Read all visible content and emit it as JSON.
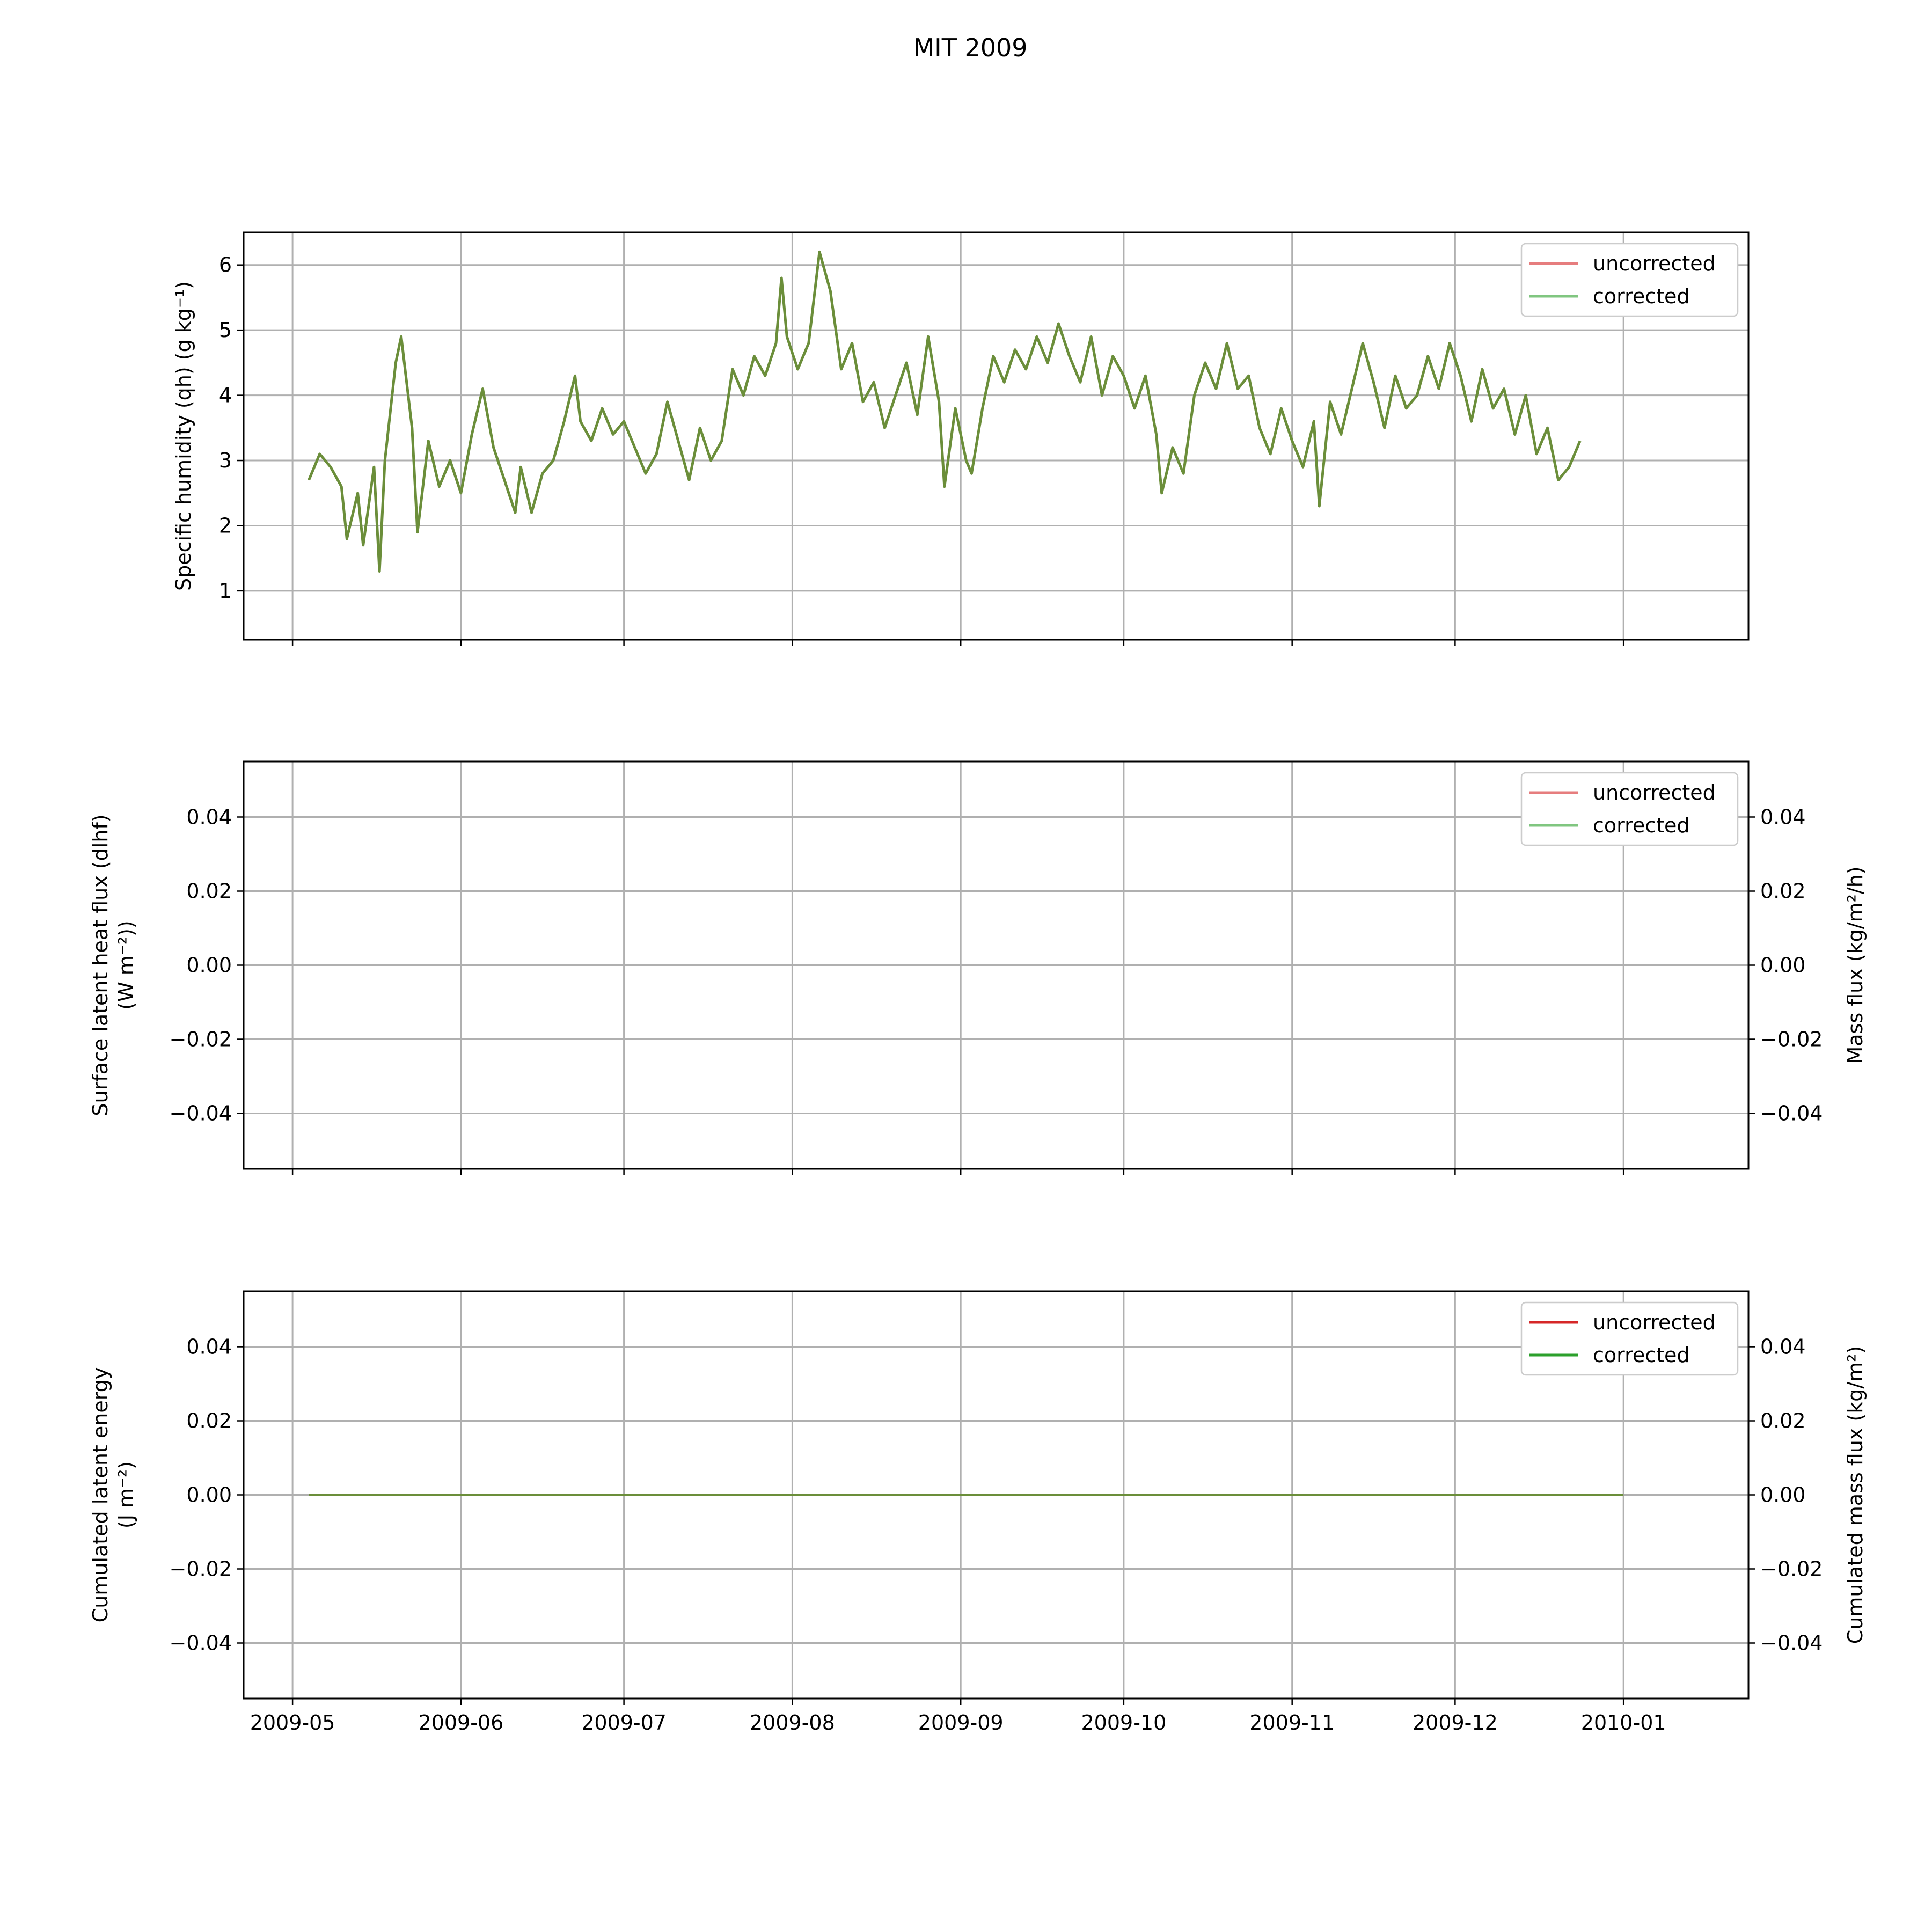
{
  "figure": {
    "title": "MIT 2009",
    "date_tick_labels": [
      "2009-05",
      "2009-06",
      "2009-07",
      "2009-08",
      "2009-09",
      "2009-10",
      "2009-11",
      "2009-12",
      "2010-01"
    ]
  },
  "colors": {
    "uncorrected": "#d62728",
    "corrected": "#2ca02c",
    "overlap": "#6b8e3a",
    "grid": "#b0b0b0"
  },
  "chart_data": [
    {
      "type": "line",
      "ylabel": "Specific humidity (qh) (g kg⁻¹)",
      "ylim": [
        0.25,
        6.5
      ],
      "yticks": [
        1,
        2,
        3,
        4,
        5,
        6
      ],
      "xlim": [
        "2009-04-22",
        "2010-01-24"
      ],
      "grid": true,
      "legend": "top-right",
      "legend_alpha": 0.6,
      "series_names": [
        "uncorrected",
        "corrected"
      ],
      "note_values": "uncorrected and corrected series are visually identical",
      "series_points": [
        [
          "2009-05-04",
          2.7
        ],
        [
          "2009-05-06",
          3.1
        ],
        [
          "2009-05-08",
          2.9
        ],
        [
          "2009-05-10",
          2.6
        ],
        [
          "2009-05-11",
          1.8
        ],
        [
          "2009-05-13",
          2.5
        ],
        [
          "2009-05-14",
          1.7
        ],
        [
          "2009-05-16",
          2.9
        ],
        [
          "2009-05-17",
          1.3
        ],
        [
          "2009-05-18",
          3.0
        ],
        [
          "2009-05-20",
          4.5
        ],
        [
          "2009-05-21",
          4.9
        ],
        [
          "2009-05-23",
          3.5
        ],
        [
          "2009-05-24",
          1.9
        ],
        [
          "2009-05-26",
          3.3
        ],
        [
          "2009-05-28",
          2.6
        ],
        [
          "2009-05-30",
          3.0
        ],
        [
          "2009-06-01",
          2.5
        ],
        [
          "2009-06-03",
          3.4
        ],
        [
          "2009-06-05",
          4.1
        ],
        [
          "2009-06-07",
          3.2
        ],
        [
          "2009-06-09",
          2.7
        ],
        [
          "2009-06-11",
          2.2
        ],
        [
          "2009-06-12",
          2.9
        ],
        [
          "2009-06-14",
          2.2
        ],
        [
          "2009-06-16",
          2.8
        ],
        [
          "2009-06-18",
          3.0
        ],
        [
          "2009-06-20",
          3.6
        ],
        [
          "2009-06-22",
          4.3
        ],
        [
          "2009-06-23",
          3.6
        ],
        [
          "2009-06-25",
          3.3
        ],
        [
          "2009-06-27",
          3.8
        ],
        [
          "2009-06-29",
          3.4
        ],
        [
          "2009-07-01",
          3.6
        ],
        [
          "2009-07-03",
          3.2
        ],
        [
          "2009-07-05",
          2.8
        ],
        [
          "2009-07-07",
          3.1
        ],
        [
          "2009-07-09",
          3.9
        ],
        [
          "2009-07-11",
          3.3
        ],
        [
          "2009-07-13",
          2.7
        ],
        [
          "2009-07-15",
          3.5
        ],
        [
          "2009-07-17",
          3.0
        ],
        [
          "2009-07-19",
          3.3
        ],
        [
          "2009-07-21",
          4.4
        ],
        [
          "2009-07-23",
          4.0
        ],
        [
          "2009-07-25",
          4.6
        ],
        [
          "2009-07-27",
          4.3
        ],
        [
          "2009-07-29",
          4.8
        ],
        [
          "2009-07-30",
          5.8
        ],
        [
          "2009-07-31",
          4.9
        ],
        [
          "2009-08-02",
          4.4
        ],
        [
          "2009-08-04",
          4.8
        ],
        [
          "2009-08-06",
          6.2
        ],
        [
          "2009-08-08",
          5.6
        ],
        [
          "2009-08-10",
          4.4
        ],
        [
          "2009-08-12",
          4.8
        ],
        [
          "2009-08-14",
          3.9
        ],
        [
          "2009-08-16",
          4.2
        ],
        [
          "2009-08-18",
          3.5
        ],
        [
          "2009-08-20",
          4.0
        ],
        [
          "2009-08-22",
          4.5
        ],
        [
          "2009-08-24",
          3.7
        ],
        [
          "2009-08-26",
          4.9
        ],
        [
          "2009-08-28",
          3.9
        ],
        [
          "2009-08-29",
          2.6
        ],
        [
          "2009-08-31",
          3.8
        ],
        [
          "2009-09-02",
          3.0
        ],
        [
          "2009-09-03",
          2.8
        ],
        [
          "2009-09-05",
          3.8
        ],
        [
          "2009-09-07",
          4.6
        ],
        [
          "2009-09-09",
          4.2
        ],
        [
          "2009-09-11",
          4.7
        ],
        [
          "2009-09-13",
          4.4
        ],
        [
          "2009-09-15",
          4.9
        ],
        [
          "2009-09-17",
          4.5
        ],
        [
          "2009-09-19",
          5.1
        ],
        [
          "2009-09-21",
          4.6
        ],
        [
          "2009-09-23",
          4.2
        ],
        [
          "2009-09-25",
          4.9
        ],
        [
          "2009-09-27",
          4.0
        ],
        [
          "2009-09-29",
          4.6
        ],
        [
          "2009-10-01",
          4.3
        ],
        [
          "2009-10-03",
          3.8
        ],
        [
          "2009-10-05",
          4.3
        ],
        [
          "2009-10-07",
          3.4
        ],
        [
          "2009-10-08",
          2.5
        ],
        [
          "2009-10-10",
          3.2
        ],
        [
          "2009-10-12",
          2.8
        ],
        [
          "2009-10-14",
          4.0
        ],
        [
          "2009-10-16",
          4.5
        ],
        [
          "2009-10-18",
          4.1
        ],
        [
          "2009-10-20",
          4.8
        ],
        [
          "2009-10-22",
          4.1
        ],
        [
          "2009-10-24",
          4.3
        ],
        [
          "2009-10-26",
          3.5
        ],
        [
          "2009-10-28",
          3.1
        ],
        [
          "2009-10-30",
          3.8
        ],
        [
          "2009-11-01",
          3.3
        ],
        [
          "2009-11-03",
          2.9
        ],
        [
          "2009-11-05",
          3.6
        ],
        [
          "2009-11-06",
          2.3
        ],
        [
          "2009-11-08",
          3.9
        ],
        [
          "2009-11-10",
          3.4
        ],
        [
          "2009-11-12",
          4.1
        ],
        [
          "2009-11-14",
          4.8
        ],
        [
          "2009-11-16",
          4.2
        ],
        [
          "2009-11-18",
          3.5
        ],
        [
          "2009-11-20",
          4.3
        ],
        [
          "2009-11-22",
          3.8
        ],
        [
          "2009-11-24",
          4.0
        ],
        [
          "2009-11-26",
          4.6
        ],
        [
          "2009-11-28",
          4.1
        ],
        [
          "2009-11-30",
          4.8
        ],
        [
          "2009-12-02",
          4.3
        ],
        [
          "2009-12-04",
          3.6
        ],
        [
          "2009-12-06",
          4.4
        ],
        [
          "2009-12-08",
          3.8
        ],
        [
          "2009-12-10",
          4.1
        ],
        [
          "2009-12-12",
          3.4
        ],
        [
          "2009-12-14",
          4.0
        ],
        [
          "2009-12-16",
          3.1
        ],
        [
          "2009-12-18",
          3.5
        ],
        [
          "2009-12-20",
          2.7
        ],
        [
          "2009-12-22",
          2.9
        ],
        [
          "2009-12-24",
          3.3
        ]
      ]
    },
    {
      "type": "line",
      "ylabel": "Surface latent heat flux (dlhf)\n(W m⁻²))",
      "ylabel_right": "Mass flux (kg/m²/h)",
      "ylim": [
        -0.055,
        0.055
      ],
      "yticks": [
        -0.04,
        -0.02,
        0.0,
        0.02,
        0.04
      ],
      "ytick_labels": [
        "−0.04",
        "−0.02",
        "0.00",
        "0.02",
        "0.04"
      ],
      "grid": true,
      "legend": "top-right",
      "legend_alpha": 0.6,
      "series_names": [
        "uncorrected",
        "corrected"
      ],
      "series_points": []
    },
    {
      "type": "line",
      "ylabel": "Cumulated latent energy\n(J m⁻²)",
      "ylabel_right": "Cumulated mass flux (kg/m²)",
      "ylim": [
        -0.055,
        0.055
      ],
      "yticks": [
        -0.04,
        -0.02,
        0.0,
        0.02,
        0.04
      ],
      "ytick_labels": [
        "−0.04",
        "−0.02",
        "0.00",
        "0.02",
        "0.04"
      ],
      "grid": true,
      "legend": "top-right",
      "legend_alpha": 1.0,
      "series_names": [
        "uncorrected",
        "corrected"
      ],
      "series_points": [
        [
          "2009-05-04",
          0.0
        ],
        [
          "2010-01-01",
          0.0
        ]
      ]
    }
  ]
}
